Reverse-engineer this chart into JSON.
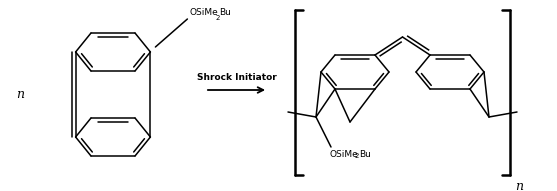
{
  "background_color": "#ffffff",
  "text_color": "#000000",
  "line_color": "#000000",
  "line_width": 1.1,
  "figsize": [
    5.57,
    1.91
  ],
  "dpi": 100,
  "arrow_label": "Shrock Initiator",
  "n_left": "n",
  "n_right": "n",
  "osime2bu": "OSiMe",
  "two": "2",
  "bu": "Bu"
}
